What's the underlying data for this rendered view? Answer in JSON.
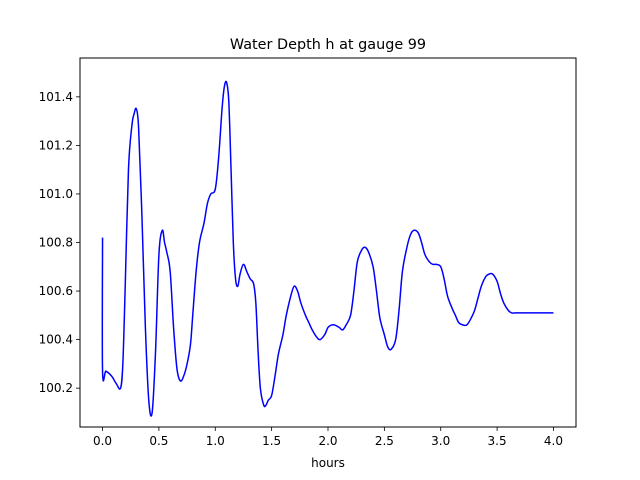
{
  "chart_data": {
    "type": "line",
    "title": "Water Depth h at gauge 99",
    "xlabel": "hours",
    "ylabel": "",
    "xlim": [
      -0.2,
      4.2
    ],
    "ylim": [
      100.04,
      101.56
    ],
    "xticks": [
      "0.0",
      "0.5",
      "1.0",
      "1.5",
      "2.0",
      "2.5",
      "3.0",
      "3.5",
      "4.0"
    ],
    "yticks": [
      "100.2",
      "100.4",
      "100.6",
      "100.8",
      "101.0",
      "101.2",
      "101.4"
    ],
    "grid": false,
    "colors": {
      "line": "#0000ff"
    },
    "series": [
      {
        "x": [
          0.0,
          0.0,
          0.03,
          0.08,
          0.12,
          0.16,
          0.18,
          0.2,
          0.23,
          0.26,
          0.28,
          0.3,
          0.32,
          0.35,
          0.38,
          0.41,
          0.44,
          0.47,
          0.5,
          0.53,
          0.55,
          0.57,
          0.6,
          0.63,
          0.66,
          0.69,
          0.72,
          0.75,
          0.78,
          0.8,
          0.83,
          0.86,
          0.9,
          0.93,
          0.96,
          1.0,
          1.03,
          1.06,
          1.08,
          1.1,
          1.12,
          1.14,
          1.16,
          1.18,
          1.2,
          1.22,
          1.25,
          1.28,
          1.31,
          1.34,
          1.36,
          1.38,
          1.4,
          1.43,
          1.45,
          1.47,
          1.5,
          1.53,
          1.56,
          1.6,
          1.63,
          1.67,
          1.7,
          1.73,
          1.76,
          1.8,
          1.83,
          1.86,
          1.9,
          1.93,
          1.97,
          2.0,
          2.03,
          2.06,
          2.1,
          2.13,
          2.16,
          2.2,
          2.23,
          2.26,
          2.3,
          2.33,
          2.36,
          2.4,
          2.43,
          2.46,
          2.5,
          2.53,
          2.56,
          2.6,
          2.63,
          2.66,
          2.7,
          2.73,
          2.76,
          2.8,
          2.83,
          2.86,
          2.9,
          2.93,
          2.96,
          3.0,
          3.03,
          3.06,
          3.1,
          3.13,
          3.16,
          3.2,
          3.23,
          3.26,
          3.3,
          3.33,
          3.36,
          3.4,
          3.43,
          3.46,
          3.5,
          3.53,
          3.56,
          3.6,
          3.63,
          3.66,
          3.7,
          3.73,
          3.76,
          3.8,
          3.83,
          3.86,
          3.9,
          3.93,
          3.96,
          4.0
        ],
        "y": [
          100.82,
          100.27,
          100.27,
          100.25,
          100.22,
          100.2,
          100.3,
          100.6,
          101.1,
          101.28,
          101.33,
          101.35,
          101.27,
          100.9,
          100.45,
          100.15,
          100.1,
          100.35,
          100.75,
          100.85,
          100.8,
          100.76,
          100.68,
          100.45,
          100.28,
          100.23,
          100.25,
          100.3,
          100.38,
          100.5,
          100.68,
          100.8,
          100.88,
          100.96,
          101.0,
          101.02,
          101.15,
          101.35,
          101.44,
          101.46,
          101.38,
          101.1,
          100.8,
          100.65,
          100.62,
          100.67,
          100.71,
          100.68,
          100.65,
          100.63,
          100.55,
          100.35,
          100.2,
          100.13,
          100.13,
          100.15,
          100.17,
          100.25,
          100.34,
          100.42,
          100.5,
          100.58,
          100.62,
          100.6,
          100.55,
          100.5,
          100.47,
          100.44,
          100.41,
          100.4,
          100.42,
          100.45,
          100.46,
          100.46,
          100.45,
          100.44,
          100.46,
          100.5,
          100.6,
          100.72,
          100.77,
          100.78,
          100.76,
          100.7,
          100.6,
          100.49,
          100.42,
          100.37,
          100.36,
          100.4,
          100.52,
          100.68,
          100.78,
          100.83,
          100.85,
          100.84,
          100.8,
          100.75,
          100.72,
          100.71,
          100.71,
          100.7,
          100.65,
          100.58,
          100.53,
          100.5,
          100.47,
          100.46,
          100.46,
          100.48,
          100.52,
          100.57,
          100.62,
          100.66,
          100.67,
          100.67,
          100.64,
          100.59,
          100.55,
          100.52,
          100.51,
          100.51,
          100.51,
          100.51,
          100.51,
          100.51,
          100.51,
          100.51,
          100.51,
          100.51,
          100.51,
          100.51
        ]
      }
    ]
  }
}
